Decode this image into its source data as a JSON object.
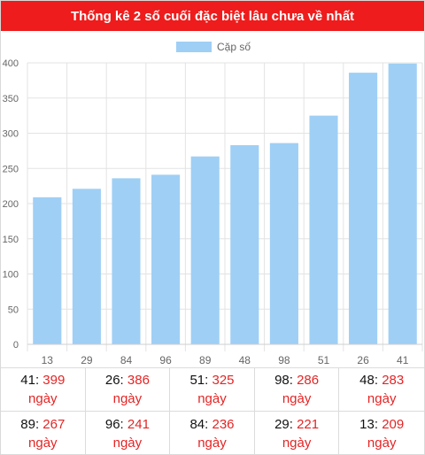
{
  "header": {
    "title": "Thống kê 2 số cuối đặc biệt lâu chưa về nhất"
  },
  "chart_data": {
    "type": "bar",
    "legend": {
      "label": "Cặp số",
      "color": "#9fcff5",
      "position": "top"
    },
    "categories": [
      "13",
      "29",
      "84",
      "96",
      "89",
      "48",
      "98",
      "51",
      "26",
      "41"
    ],
    "values": [
      209,
      221,
      236,
      241,
      267,
      283,
      286,
      325,
      386,
      399
    ],
    "ylim": [
      0,
      400
    ],
    "yticks": [
      0,
      50,
      100,
      150,
      200,
      250,
      300,
      350,
      400
    ],
    "grid": true,
    "bar_color": "#9fcff5"
  },
  "stats": [
    {
      "num": "41",
      "days": "399",
      "unit": "ngày"
    },
    {
      "num": "26",
      "days": "386",
      "unit": "ngày"
    },
    {
      "num": "51",
      "days": "325",
      "unit": "ngày"
    },
    {
      "num": "98",
      "days": "286",
      "unit": "ngày"
    },
    {
      "num": "48",
      "days": "283",
      "unit": "ngày"
    },
    {
      "num": "89",
      "days": "267",
      "unit": "ngày"
    },
    {
      "num": "96",
      "days": "241",
      "unit": "ngày"
    },
    {
      "num": "84",
      "days": "236",
      "unit": "ngày"
    },
    {
      "num": "29",
      "days": "221",
      "unit": "ngày"
    },
    {
      "num": "13",
      "days": "209",
      "unit": "ngày"
    }
  ]
}
